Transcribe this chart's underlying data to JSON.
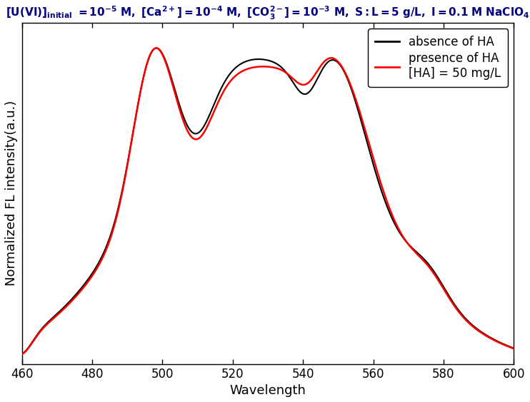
{
  "xlabel": "Wavelength",
  "ylabel": "Normalized FL intensity(a.u.)",
  "xlim": [
    460,
    600
  ],
  "ylim": [
    0,
    1.08
  ],
  "title_fontsize": 11,
  "label_fontsize": 13,
  "legend_fontsize": 12,
  "tick_fontsize": 12,
  "black_color": "#000000",
  "red_color": "#ff0000",
  "title_color": "#000080",
  "background_color": "#ffffff",
  "legend_label1": "absence of HA",
  "legend_label2": "presence of HA\n[HA] = 50 mg/L",
  "xticks": [
    460,
    480,
    500,
    520,
    540,
    560,
    580,
    600
  ]
}
